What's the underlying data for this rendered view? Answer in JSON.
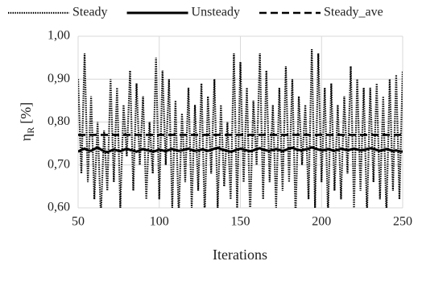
{
  "chart_data": {
    "type": "line",
    "x_label": "Iterations",
    "y_label": {
      "symbol": "η",
      "subscript": "R",
      "unit": "[%]"
    },
    "xlim": [
      50,
      250
    ],
    "xticks": [
      50,
      100,
      150,
      200,
      250
    ],
    "ylim": [
      0.6,
      1.0
    ],
    "yticks": [
      {
        "value": 0.6,
        "label": "0,60"
      },
      {
        "value": 0.7,
        "label": "0,70"
      },
      {
        "value": 0.8,
        "label": "0,80"
      },
      {
        "value": 0.9,
        "label": "0,90"
      },
      {
        "value": 1.0,
        "label": "1,00"
      }
    ],
    "grid": true,
    "legend": "top",
    "x": [
      50,
      52,
      54,
      56,
      58,
      60,
      62,
      64,
      66,
      68,
      70,
      72,
      74,
      76,
      78,
      80,
      82,
      84,
      86,
      88,
      90,
      92,
      94,
      96,
      98,
      100,
      102,
      104,
      106,
      108,
      110,
      112,
      114,
      116,
      118,
      120,
      122,
      124,
      126,
      128,
      130,
      132,
      134,
      136,
      138,
      140,
      142,
      144,
      146,
      148,
      150,
      152,
      154,
      156,
      158,
      160,
      162,
      164,
      166,
      168,
      170,
      172,
      174,
      176,
      178,
      180,
      182,
      184,
      186,
      188,
      190,
      192,
      194,
      196,
      198,
      200,
      202,
      204,
      206,
      208,
      210,
      212,
      214,
      216,
      218,
      220,
      222,
      224,
      226,
      228,
      230,
      232,
      234,
      236,
      238,
      240,
      242,
      244,
      246,
      248,
      250
    ],
    "series": [
      {
        "name": "Steady",
        "color": "#000000",
        "line_style": "dotted",
        "values": [
          0.9,
          0.68,
          0.96,
          0.66,
          0.86,
          0.62,
          0.8,
          0.58,
          0.78,
          0.64,
          0.9,
          0.66,
          0.88,
          0.6,
          0.84,
          0.72,
          0.92,
          0.64,
          0.89,
          0.7,
          0.86,
          0.62,
          0.8,
          0.68,
          0.95,
          0.62,
          0.92,
          0.7,
          0.9,
          0.6,
          0.85,
          0.58,
          0.82,
          0.66,
          0.88,
          0.6,
          0.84,
          0.64,
          0.89,
          0.58,
          0.86,
          0.68,
          0.9,
          0.6,
          0.84,
          0.65,
          0.8,
          0.62,
          0.96,
          0.6,
          0.94,
          0.66,
          0.88,
          0.58,
          0.85,
          0.7,
          0.96,
          0.62,
          0.92,
          0.66,
          0.84,
          0.6,
          0.88,
          0.64,
          0.93,
          0.66,
          0.9,
          0.58,
          0.86,
          0.7,
          0.84,
          0.62,
          0.97,
          0.6,
          0.96,
          0.66,
          0.88,
          0.58,
          0.89,
          0.64,
          0.84,
          0.62,
          0.86,
          0.68,
          0.93,
          0.6,
          0.9,
          0.64,
          0.88,
          0.58,
          0.88,
          0.66,
          0.89,
          0.62,
          0.86,
          0.58,
          0.9,
          0.64,
          0.91,
          0.62,
          0.92
        ]
      },
      {
        "name": "Unsteady",
        "color": "#000000",
        "line_style": "solid",
        "values": [
          0.731,
          0.735,
          0.738,
          0.734,
          0.733,
          0.737,
          0.741,
          0.736,
          0.732,
          0.73,
          0.733,
          0.736,
          0.734,
          0.732,
          0.735,
          0.738,
          0.735,
          0.733,
          0.731,
          0.734,
          0.737,
          0.735,
          0.733,
          0.731,
          0.733,
          0.736,
          0.734,
          0.732,
          0.735,
          0.737,
          0.735,
          0.733,
          0.734,
          0.736,
          0.738,
          0.735,
          0.733,
          0.734,
          0.736,
          0.735,
          0.733,
          0.735,
          0.738,
          0.74,
          0.737,
          0.735,
          0.733,
          0.731,
          0.733,
          0.736,
          0.738,
          0.736,
          0.734,
          0.732,
          0.734,
          0.737,
          0.739,
          0.736,
          0.734,
          0.733,
          0.735,
          0.737,
          0.735,
          0.733,
          0.735,
          0.738,
          0.74,
          0.737,
          0.735,
          0.734,
          0.736,
          0.738,
          0.741,
          0.738,
          0.736,
          0.734,
          0.735,
          0.737,
          0.735,
          0.733,
          0.735,
          0.738,
          0.736,
          0.734,
          0.736,
          0.738,
          0.736,
          0.734,
          0.735,
          0.737,
          0.739,
          0.737,
          0.735,
          0.733,
          0.735,
          0.737,
          0.735,
          0.733,
          0.734,
          0.732,
          0.731
        ]
      },
      {
        "name": "Steady_ave",
        "color": "#000000",
        "line_style": "dashed",
        "x": [
          50,
          250
        ],
        "values": [
          0.77,
          0.77
        ]
      }
    ]
  }
}
